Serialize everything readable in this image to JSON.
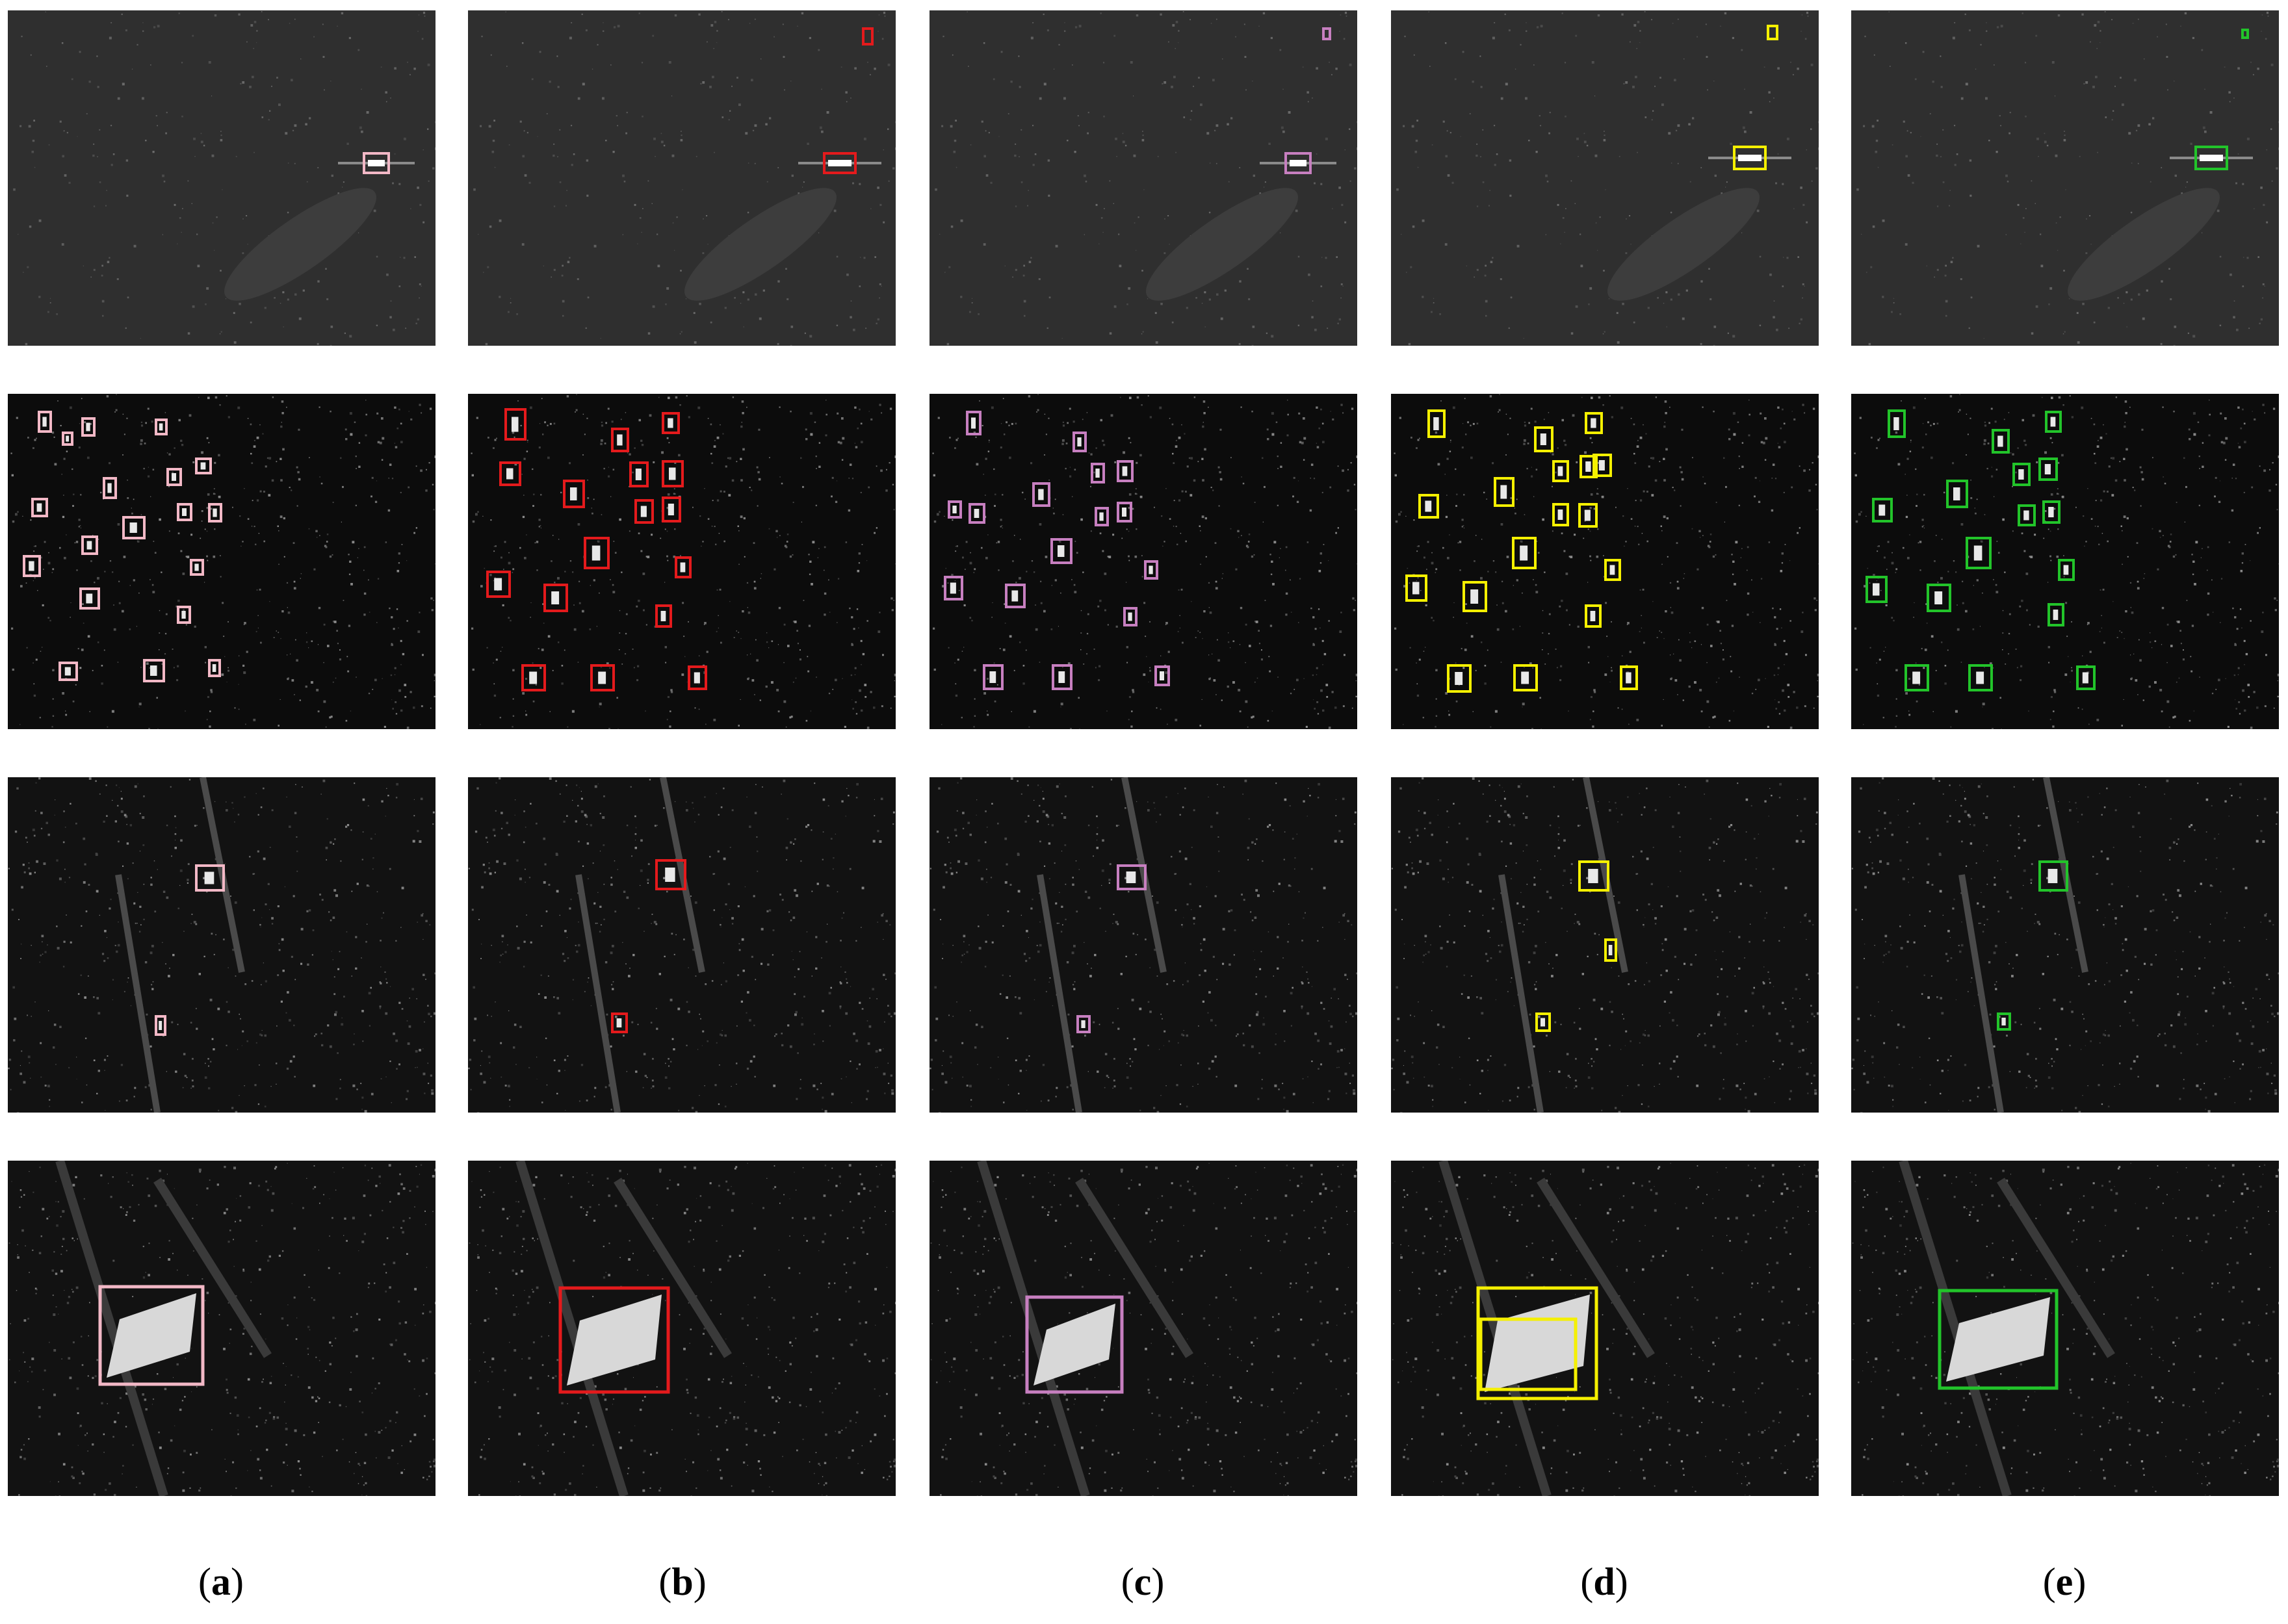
{
  "columns": [
    {
      "id": "a",
      "label": "a",
      "box_color": "#f2b8c6"
    },
    {
      "id": "b",
      "label": "b",
      "box_color": "#e41a1c"
    },
    {
      "id": "c",
      "label": "c",
      "box_color": "#c77fc0"
    },
    {
      "id": "d",
      "label": "d",
      "box_color": "#f5f000"
    },
    {
      "id": "e",
      "label": "e",
      "box_color": "#22c42a"
    }
  ],
  "rows": [
    {
      "id": "single-ship-glare",
      "background": "#2f2f2f"
    },
    {
      "id": "multi-target-field",
      "background": "#0c0c0c"
    },
    {
      "id": "ships-with-streaks",
      "background": "#121212"
    },
    {
      "id": "large-ship",
      "background": "#121212"
    }
  ],
  "label_parens": [
    "(",
    ")"
  ]
}
